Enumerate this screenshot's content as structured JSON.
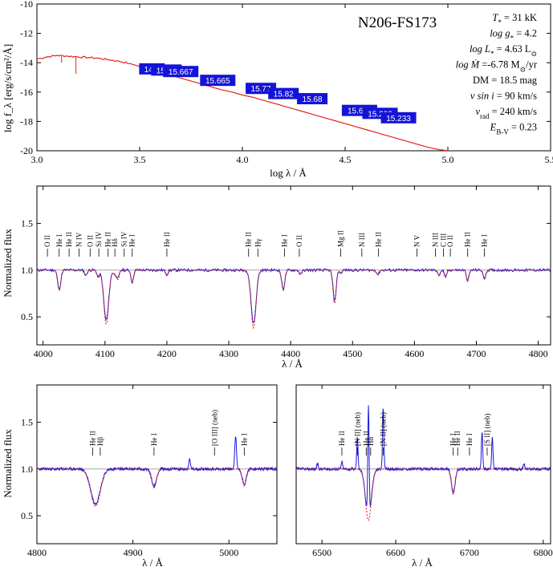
{
  "chart_data": [
    {
      "type": "line",
      "title": "N206-FS173",
      "xlabel": "log λ / Å",
      "ylabel": "log f_λ [erg/s/cm²/Å]",
      "xlim": [
        3.0,
        5.5
      ],
      "ylim": [
        -20,
        -10
      ],
      "xticks": [
        "3.0",
        "3.5",
        "4.0",
        "4.5",
        "5.0",
        "5.5"
      ],
      "yticks": [
        "-20",
        "-18",
        "-16",
        "-14",
        "-12",
        "-10"
      ],
      "grid": false,
      "series": [
        {
          "color": "#e0241b",
          "x": [
            3.0,
            3.05,
            3.1,
            3.15,
            3.2,
            3.25,
            3.3,
            3.35,
            3.4,
            3.45,
            3.5,
            3.55,
            3.6,
            3.65,
            3.7,
            3.75,
            3.8,
            3.85,
            3.9,
            3.95,
            4.0,
            4.05,
            4.1,
            4.15,
            4.2,
            4.25,
            4.3,
            4.35,
            4.4,
            4.45,
            4.5,
            4.55,
            4.6,
            4.65,
            4.7,
            4.75,
            4.8,
            4.85,
            4.9,
            4.95,
            5.0,
            5.05,
            5.1,
            5.15,
            5.2,
            5.25
          ],
          "y": [
            -13.75,
            -13.6,
            -13.5,
            -13.55,
            -13.6,
            -13.65,
            -13.7,
            -13.8,
            -13.9,
            -14.05,
            -14.25,
            -14.45,
            -14.65,
            -14.85,
            -15.05,
            -15.25,
            -15.45,
            -15.65,
            -15.85,
            -16.0,
            -16.2,
            -16.35,
            -16.55,
            -16.75,
            -16.95,
            -17.15,
            -17.35,
            -17.55,
            -17.75,
            -17.95,
            -18.15,
            -18.35,
            -18.55,
            -18.75,
            -18.95,
            -19.15,
            -19.35,
            -19.55,
            -19.75,
            -19.9,
            -20.0,
            -20.15,
            -20.3,
            -20.45,
            -20.6,
            -20.75
          ]
        }
      ],
      "photometry": [
        {
          "x": 3.56,
          "y": -14.42,
          "label": "14.7"
        },
        {
          "x": 3.63,
          "y": -14.5,
          "label": "15.71"
        },
        {
          "x": 3.7,
          "y": -14.6,
          "label": "15.667"
        },
        {
          "x": 3.88,
          "y": -15.2,
          "label": "15.665"
        },
        {
          "x": 4.09,
          "y": -15.75,
          "label": "15.77"
        },
        {
          "x": 4.2,
          "y": -16.1,
          "label": "15.82"
        },
        {
          "x": 4.34,
          "y": -16.45,
          "label": "15.68"
        },
        {
          "x": 4.57,
          "y": -17.25,
          "label": "15.611"
        },
        {
          "x": 4.67,
          "y": -17.45,
          "label": "15.232"
        },
        {
          "x": 4.76,
          "y": -17.75,
          "label": "15.233"
        }
      ],
      "parameters": [
        {
          "label": "T",
          "sub": "*",
          "value": " = 31 kK"
        },
        {
          "label": "log g",
          "sub": "*",
          "value": " = 4.2"
        },
        {
          "label": "log L",
          "sub": "*",
          "value": " = 4.63 L",
          "unit_sub": "⊙"
        },
        {
          "label": "log Ṁ",
          "sub": "",
          "value": " =-6.78 M",
          "unit_sub": "⊙",
          "tail": "/yr"
        },
        {
          "label": "DM",
          "sub": "",
          "value": " = 18.5 mag"
        },
        {
          "label": "v sin i",
          "sub": "",
          "value": " = 90 km/s"
        },
        {
          "label": "v",
          "sub": "rad",
          "value": " = 240 km/s"
        },
        {
          "label": "E",
          "sub": "B-V",
          "value": " = 0.23"
        }
      ]
    },
    {
      "type": "line",
      "xlabel": "λ / Å",
      "ylabel": "Normalized flux",
      "xlim": [
        3990,
        4820
      ],
      "ylim": [
        0.2,
        1.9
      ],
      "xticks": [
        "4000",
        "4100",
        "4200",
        "4300",
        "4400",
        "4500",
        "4600",
        "4700",
        "4800"
      ],
      "yticks": [
        "0.5",
        "1.0",
        "1.5"
      ],
      "continuum": 1.0,
      "lines": [
        {
          "wave": 4026,
          "depth": 0.22,
          "width": 2.5
        },
        {
          "wave": 4069,
          "depth": 0.06,
          "width": 2
        },
        {
          "wave": 4089,
          "depth": 0.08,
          "width": 2
        },
        {
          "wave": 4102,
          "depth": 0.58,
          "width": 4
        },
        {
          "wave": 4116,
          "depth": 0.05,
          "width": 2
        },
        {
          "wave": 4121,
          "depth": 0.1,
          "width": 2
        },
        {
          "wave": 4144,
          "depth": 0.14,
          "width": 2
        },
        {
          "wave": 4200,
          "depth": 0.05,
          "width": 2
        },
        {
          "wave": 4340,
          "depth": 0.62,
          "width": 4
        },
        {
          "wave": 4388,
          "depth": 0.22,
          "width": 2.5
        },
        {
          "wave": 4416,
          "depth": 0.05,
          "width": 2
        },
        {
          "wave": 4471,
          "depth": 0.36,
          "width": 2.5
        },
        {
          "wave": 4481,
          "depth": 0.04,
          "width": 1.5
        },
        {
          "wave": 4541,
          "depth": 0.05,
          "width": 2
        },
        {
          "wave": 4640,
          "depth": 0.06,
          "width": 2
        },
        {
          "wave": 4650,
          "depth": 0.08,
          "width": 2
        },
        {
          "wave": 4686,
          "depth": 0.12,
          "width": 2
        },
        {
          "wave": 4713,
          "depth": 0.1,
          "width": 2
        }
      ],
      "ids": [
        {
          "x": 4007,
          "text": "O II"
        },
        {
          "x": 4026,
          "text": "He I"
        },
        {
          "x": 4042,
          "text": "He II"
        },
        {
          "x": 4058,
          "text": "N IV"
        },
        {
          "x": 4076,
          "text": "O II"
        },
        {
          "x": 4090,
          "text": "Si IV"
        },
        {
          "x": 4105,
          "text": "He II"
        },
        {
          "x": 4116,
          "text": "Hδ"
        },
        {
          "x": 4131,
          "text": "Si IV"
        },
        {
          "x": 4144,
          "text": "He I"
        },
        {
          "x": 4200,
          "text": "He II"
        },
        {
          "x": 4332,
          "text": "He II"
        },
        {
          "x": 4347,
          "text": "Hγ"
        },
        {
          "x": 4390,
          "text": "He I"
        },
        {
          "x": 4414,
          "text": "O II"
        },
        {
          "x": 4481,
          "text": "Mg II"
        },
        {
          "x": 4515,
          "text": "N III"
        },
        {
          "x": 4542,
          "text": "He II"
        },
        {
          "x": 4604,
          "text": "N V"
        },
        {
          "x": 4634,
          "text": "N III"
        },
        {
          "x": 4647,
          "text": "C III"
        },
        {
          "x": 4658,
          "text": "O II"
        },
        {
          "x": 4686,
          "text": "He II"
        },
        {
          "x": 4713,
          "text": "He I"
        }
      ]
    },
    {
      "type": "line",
      "xlabel": "λ / Å",
      "ylabel": "Normalized flux",
      "xlim": [
        4800,
        5050
      ],
      "ylim": [
        0.2,
        1.9
      ],
      "xticks": [
        "4800",
        "4900",
        "5000"
      ],
      "yticks": [
        "0.5",
        "1.0",
        "1.5"
      ],
      "continuum": 1.0,
      "lines": [
        {
          "wave": 4861,
          "depth": 0.4,
          "width": 5
        },
        {
          "wave": 4922,
          "depth": 0.2,
          "width": 2.5
        },
        {
          "wave": 5016,
          "depth": 0.18,
          "width": 2
        }
      ],
      "emissions": [
        {
          "wave": 4959,
          "height": 0.1
        },
        {
          "wave": 5007,
          "height": 0.35
        }
      ],
      "ids": [
        {
          "x": 4858,
          "text": "He II"
        },
        {
          "x": 4866,
          "text": "Hβ"
        },
        {
          "x": 4922,
          "text": "He I"
        },
        {
          "x": 4985,
          "text": "[O III] (neb)"
        },
        {
          "x": 5016,
          "text": "He I"
        }
      ]
    },
    {
      "type": "line",
      "xlabel": "λ / Å",
      "ylabel": "",
      "xlim": [
        6465,
        6810
      ],
      "ylim": [
        0.2,
        1.9
      ],
      "xticks": [
        "6500",
        "6600",
        "6700",
        "6800"
      ],
      "yticks": [],
      "continuum": 1.0,
      "lines": [
        {
          "wave": 6563,
          "depth": 0.55,
          "width": 4
        },
        {
          "wave": 6678,
          "depth": 0.27,
          "width": 2.5
        }
      ],
      "emissions": [
        {
          "wave": 6548,
          "height": 0.35
        },
        {
          "wave": 6563,
          "height": 1.2
        },
        {
          "wave": 6583,
          "height": 0.65
        },
        {
          "wave": 6717,
          "height": 0.4
        },
        {
          "wave": 6731,
          "height": 0.35
        },
        {
          "wave": 6527,
          "height": 0.08
        },
        {
          "wave": 6494,
          "height": 0.06
        },
        {
          "wave": 6774,
          "height": 0.06
        }
      ],
      "ids": [
        {
          "x": 6527,
          "text": "He II"
        },
        {
          "x": 6548,
          "text": "[N II] (neb)"
        },
        {
          "x": 6560,
          "text": "He II"
        },
        {
          "x": 6566,
          "text": "Hα"
        },
        {
          "x": 6583,
          "text": "[N II] (neb)"
        },
        {
          "x": 6678,
          "text": "He I"
        },
        {
          "x": 6684,
          "text": "He II"
        },
        {
          "x": 6700,
          "text": "He I"
        },
        {
          "x": 6724,
          "text": "[S II] (neb)"
        }
      ]
    }
  ]
}
